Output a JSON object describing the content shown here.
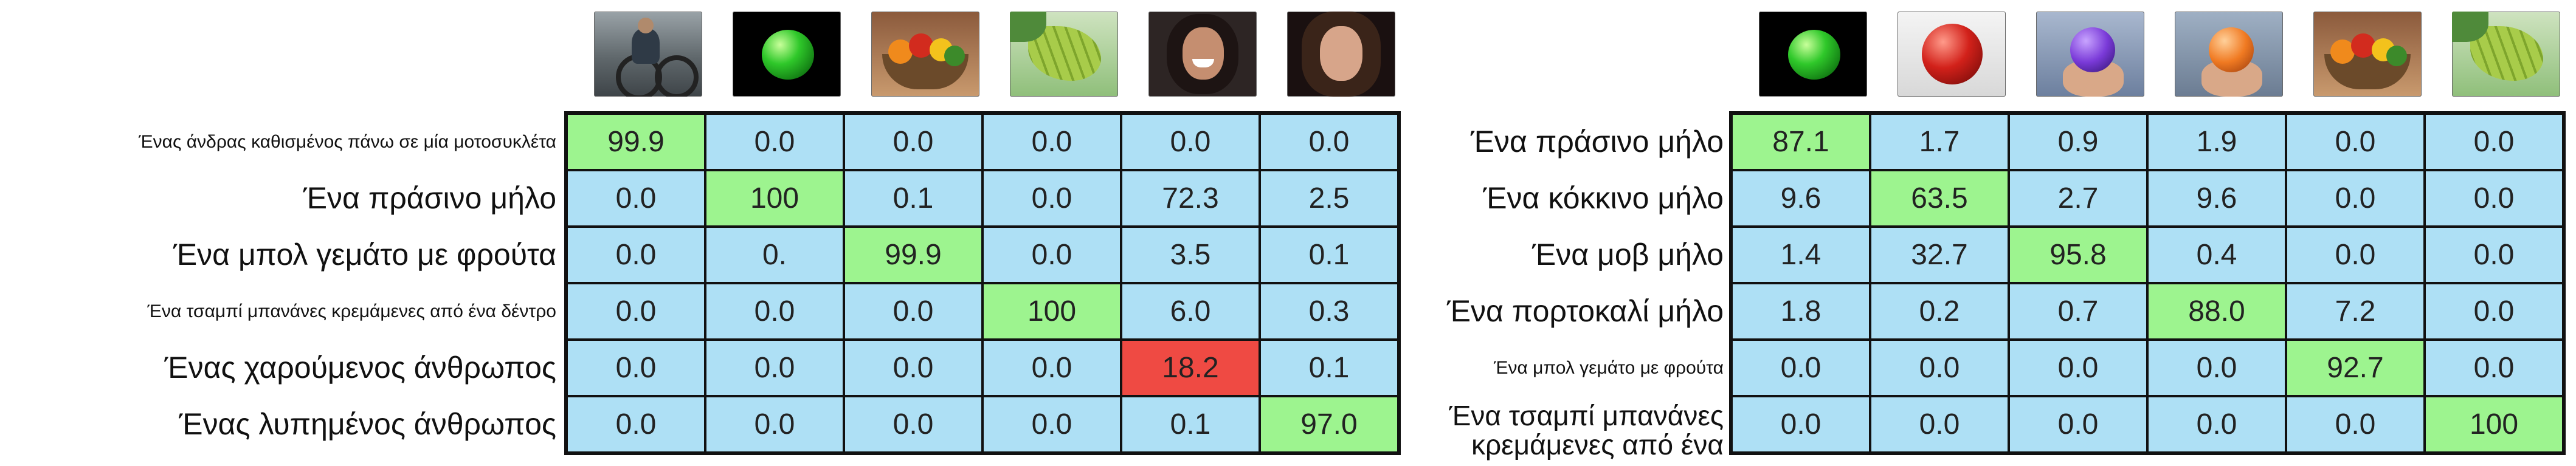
{
  "left_panel": {
    "images": [
      {
        "icon": "man-on-motorcycle-photo"
      },
      {
        "icon": "green-apple-photo"
      },
      {
        "icon": "fruit-bowl-photo"
      },
      {
        "icon": "banana-bunch-photo"
      },
      {
        "icon": "happy-person-photo"
      },
      {
        "icon": "sad-person-photo"
      }
    ],
    "rows": [
      {
        "label": "Ένας άνδρας καθισμένος πάνω σε μία μοτοσυκλέτα",
        "values": [
          "99.9",
          "0.0",
          "0.0",
          "0.0",
          "0.0",
          "0.0"
        ]
      },
      {
        "label": "Ένα πράσινο μήλο",
        "values": [
          "0.0",
          "100",
          "0.1",
          "0.0",
          "72.3",
          "2.5"
        ]
      },
      {
        "label": "Ένα μπολ γεμάτο με φρούτα",
        "values": [
          "0.0",
          "0.",
          "99.9",
          "0.0",
          "3.5",
          "0.1"
        ]
      },
      {
        "label": "Ένα τσαμπί μπανάνες κρεμάμενες από ένα δέντρο",
        "values": [
          "0.0",
          "0.0",
          "0.0",
          "100",
          "6.0",
          "0.3"
        ]
      },
      {
        "label": "Ένας χαρούμενος άνθρωπος",
        "values": [
          "0.0",
          "0.0",
          "0.0",
          "0.0",
          "18.2",
          "0.1"
        ]
      },
      {
        "label": "Ένας λυπημένος άνθρωπος",
        "values": [
          "0.0",
          "0.0",
          "0.0",
          "0.0",
          "0.1",
          "97.0"
        ]
      }
    ]
  },
  "right_panel": {
    "images": [
      {
        "icon": "green-apple-photo"
      },
      {
        "icon": "red-apple-photo"
      },
      {
        "icon": "purple-apple-in-hand-photo"
      },
      {
        "icon": "orange-apple-in-hand-photo"
      },
      {
        "icon": "fruit-bowl-photo"
      },
      {
        "icon": "banana-bunch-photo"
      }
    ],
    "rows": [
      {
        "label": "Ένα πράσινο μήλο",
        "values": [
          "87.1",
          "1.7",
          "0.9",
          "1.9",
          "0.0",
          "0.0"
        ]
      },
      {
        "label": "Ένα κόκκινο μήλο",
        "values": [
          "9.6",
          "63.5",
          "2.7",
          "9.6",
          "0.0",
          "0.0"
        ]
      },
      {
        "label": "Ένα μοβ μήλο",
        "values": [
          "1.4",
          "32.7",
          "95.8",
          "0.4",
          "0.0",
          "0.0"
        ]
      },
      {
        "label": "Ένα πορτοκαλί μήλο",
        "values": [
          "1.8",
          "0.2",
          "0.7",
          "88.0",
          "7.2",
          "0.0"
        ]
      },
      {
        "label": "Ένα μπολ γεμάτο με φρούτα",
        "values": [
          "0.0",
          "0.0",
          "0.0",
          "0.0",
          "92.7",
          "0.0"
        ]
      },
      {
        "label": "Ένα τσαμπί μπανάνες κρεμάμενες από ένα",
        "values": [
          "0.0",
          "0.0",
          "0.0",
          "0.0",
          "0.0",
          "100"
        ]
      }
    ]
  },
  "colors": {
    "cell_default": "#aee0f5",
    "cell_match": "#9df48f",
    "cell_mismatch": "#ef4a43"
  }
}
